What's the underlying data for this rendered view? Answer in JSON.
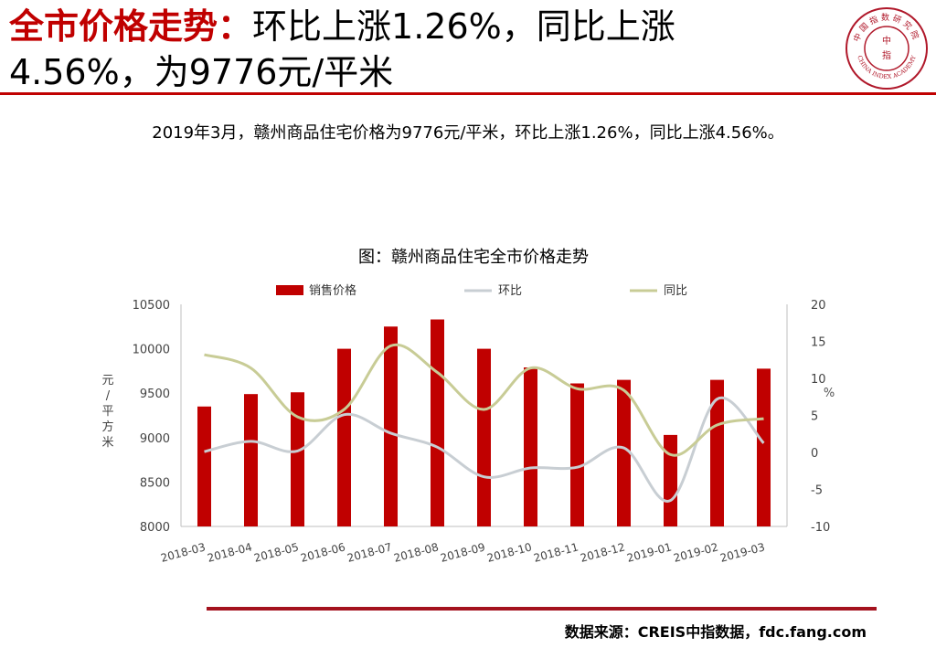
{
  "header": {
    "title_red": "全市价格走势：",
    "title_black": "环比上涨1.26%，同比上涨4.56%，为9776元/平米"
  },
  "logo": {
    "top_text": "中国指数研究院",
    "bottom_text": "CHINA INDEX ACADEMY",
    "center_top": "中",
    "center_bottom": "指"
  },
  "summary": "2019年3月，赣州商品住宅价格为9776元/平米，环比上涨1.26%，同比上涨4.56%。",
  "chart_data": {
    "type": "bar",
    "title": "图：赣州商品住宅全市价格走势",
    "categories": [
      "2018-03",
      "2018-04",
      "2018-05",
      "2018-06",
      "2018-07",
      "2018-08",
      "2018-09",
      "2018-10",
      "2018-11",
      "2018-12",
      "2019-01",
      "2019-02",
      "2019-03"
    ],
    "series": [
      {
        "name": "销售价格",
        "type": "bar",
        "axis": "left",
        "color": "#c00000",
        "values": [
          9350,
          9490,
          9510,
          10000,
          10250,
          10330,
          10000,
          9790,
          9610,
          9650,
          9030,
          9650,
          9776
        ]
      },
      {
        "name": "环比",
        "type": "line",
        "axis": "right",
        "color": "#c8ced3",
        "values": [
          0.1,
          1.5,
          0.2,
          5.1,
          2.6,
          0.7,
          -3.3,
          -2.1,
          -2.0,
          0.6,
          -6.5,
          7.2,
          1.26
        ]
      },
      {
        "name": "同比",
        "type": "line",
        "axis": "right",
        "color": "#c8cc96",
        "values": [
          13.2,
          11.4,
          4.8,
          5.8,
          14.4,
          10.8,
          5.8,
          11.4,
          8.6,
          8.4,
          -0.3,
          3.7,
          4.56
        ]
      }
    ],
    "ylabel": "元/平方米",
    "ylabel_chars": [
      "元",
      "/",
      "平",
      "方",
      "米"
    ],
    "ylim": [
      8000,
      10500
    ],
    "yticks": [
      "8000",
      "8500",
      "9000",
      "9500",
      "10000",
      "10500"
    ],
    "y2label": "%",
    "y2lim": [
      -10,
      20
    ],
    "y2ticks": [
      "-10",
      "-5",
      "0",
      "5",
      "10",
      "15",
      "20"
    ],
    "legend_position": "top",
    "grid": false
  },
  "footer": {
    "source": "数据来源：CREIS中指数据，fdc.fang.com"
  },
  "colors": {
    "accent_red": "#c00000",
    "rule_red": "#a4121e"
  }
}
